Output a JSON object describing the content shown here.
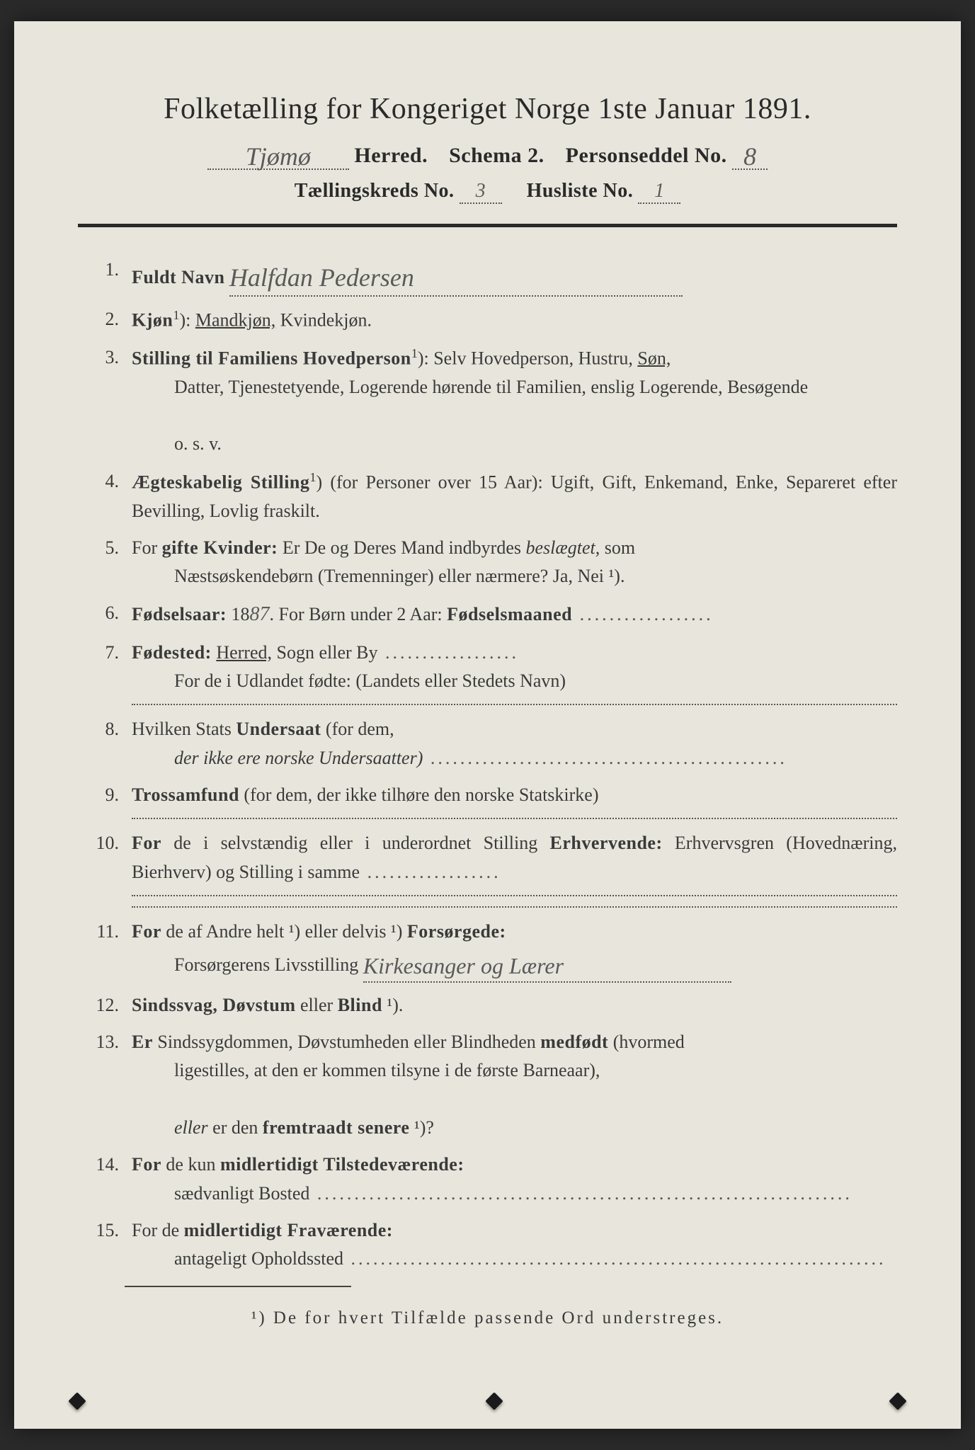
{
  "header": {
    "title": "Folketælling for Kongeriget Norge 1ste Januar 1891.",
    "herred_hw": "Tjømø",
    "herred_label": "Herred.",
    "schema": "Schema 2.",
    "personseddel_label": "Personseddel No.",
    "personseddel_hw": "8",
    "kreds_label": "Tællingskreds No.",
    "kreds_hw": "3",
    "husliste_label": "Husliste No.",
    "husliste_hw": "1"
  },
  "items": [
    {
      "n": "1.",
      "lead_bold": "Fuldt Navn",
      "hw": "Halfdan Pedersen"
    },
    {
      "n": "2.",
      "lead_bold": "Kjøn",
      "sup": "1",
      "rest": "): ",
      "underlined": "Mandkjøn,",
      "tail": " Kvindekjøn."
    },
    {
      "n": "3.",
      "lead_bold": "Stilling til Familiens Hovedperson",
      "sup": "1",
      "rest": "): Selv Hovedperson, Hustru, ",
      "underlined": "Søn,",
      "cont": [
        "Datter, Tjenestetyende, Logerende hørende til Familien, enslig Logerende, Besøgende",
        "o. s. v."
      ]
    },
    {
      "n": "4.",
      "lead_bold": "Ægteskabelig Stilling",
      "sup": "1",
      "rest": ") (for Personer over 15 Aar): Ugift, Gift, Enkemand, Enke, Separeret efter Bevilling, Lovlig fraskilt."
    },
    {
      "n": "5.",
      "pre": "For ",
      "lead_bold": "gifte Kvinder:",
      "rest": " Er De og Deres Mand indbyrdes ",
      "italic": "beslægtet,",
      "tail": " som",
      "cont": [
        "Næstsøskendebørn (Tremenninger) eller nærmere?  Ja, Nei ¹)."
      ]
    },
    {
      "n": "6.",
      "lead_bold": "Fødselsaar:",
      "rest": " 18",
      "hw_inline": "87",
      "mid": ".   For Børn under 2 Aar: ",
      "bold2": "Fødselsmaaned",
      "trail_dots": true
    },
    {
      "n": "7.",
      "lead_bold": "Fødested:",
      "rest": " ",
      "underlined": "Herred,",
      "tail": " Sogn eller By",
      "trail_dots": true,
      "cont": [
        "For de i Udlandet fødte: (Landets eller Stedets Navn)"
      ],
      "rule_after": true
    },
    {
      "n": "8.",
      "pre": "Hvilken Stats ",
      "lead_bold": "Undersaat",
      "rest": " (for dem,",
      "cont_italic": "der ikke ere norske Undersaatter)",
      "trail_dots_cont": true
    },
    {
      "n": "9.",
      "lead_bold": "Trossamfund",
      "rest": " (for dem, der ikke tilhøre den norske Statskirke)",
      "dotted_rule_after": true
    },
    {
      "n": "10.",
      "lead_bold": "For",
      "rest": " de i selvstændig eller i underordnet Stilling ",
      "bold2": "Erhvervende:",
      "tail": " Erhvervsgren (Hovednæring, Bierhverv) og Stilling i samme",
      "trail_dots": true,
      "dotted_rule_after": true,
      "dotted_rule_after2": true
    },
    {
      "n": "11.",
      "lead_bold": "For",
      "rest": " de af Andre helt ¹) eller delvis ¹) ",
      "bold2": "Forsørgede:",
      "cont_plain": "Forsørgerens Livsstilling",
      "hw_cont": "Kirkesanger og Lærer"
    },
    {
      "n": "12.",
      "lead_bold": "Sindssvag, Døvstum",
      "rest": " eller ",
      "bold2": "Blind",
      "tail": " ¹)."
    },
    {
      "n": "13.",
      "lead_bold": "Er",
      "rest": " Sindssygdommen, Døvstumheden eller Blindheden ",
      "bold2": "medfødt",
      "tail": " (hvormed",
      "cont": [
        "ligestilles, at den er kommen tilsyne i de første Barneaar),"
      ],
      "cont2_italic": "eller",
      "cont2_rest": " er den ",
      "cont2_bold": "fremtraadt senere",
      "cont2_tail": " ¹)?"
    },
    {
      "n": "14.",
      "lead_bold": "For",
      "rest": " de kun ",
      "bold2": "midlertidigt Tilstedeværende:",
      "cont_plain": "sædvanligt Bosted",
      "trail_dots_cont": true
    },
    {
      "n": "15.",
      "pre": "For de ",
      "lead_bold": "midlertidigt Fraværende:",
      "cont_plain": "antageligt Opholdssted",
      "trail_dots_cont": true
    }
  ],
  "footnote": "¹) De for hvert Tilfælde passende Ord understreges."
}
